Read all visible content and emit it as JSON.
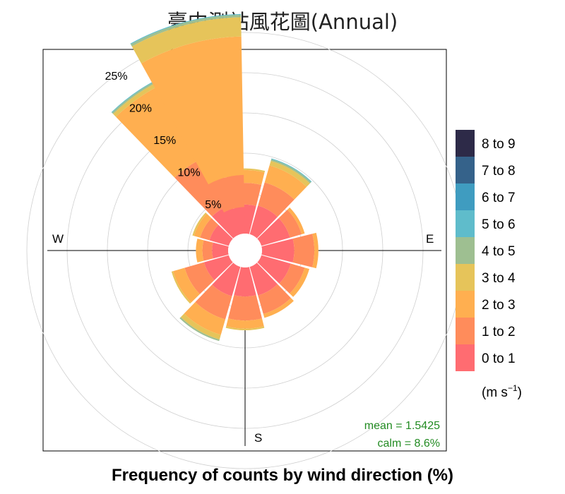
{
  "title": "臺中測站風花圖(Annual)",
  "caption": "Frequency of counts by wind direction (%)",
  "chart_data": {
    "type": "polar-stacked-bar",
    "title": "臺中測站風花圖(Annual)",
    "xlabel": "Frequency of counts by wind direction (%)",
    "radial_ticks": [
      "5%",
      "10%",
      "15%",
      "20%",
      "25%"
    ],
    "radial_tick_values": [
      5,
      10,
      15,
      20,
      25
    ],
    "compass_labels": [
      "W",
      "E",
      "S"
    ],
    "legend_title": "(m s",
    "legend_title_sup": "−1",
    "legend_title_close": ")",
    "mean_text": "mean = 1.5425",
    "calm_text": "calm = 8.6%",
    "mean_color": "#228b22",
    "legend": [
      {
        "label": "0 to 1",
        "color": "#ff6c71"
      },
      {
        "label": "1 to 2",
        "color": "#ff8c5b"
      },
      {
        "label": "2 to 3",
        "color": "#ffaf50"
      },
      {
        "label": "3 to 4",
        "color": "#e6c45a"
      },
      {
        "label": "4 to 5",
        "color": "#9ebf91"
      },
      {
        "label": "5 to 6",
        "color": "#5fbccb"
      },
      {
        "label": "6 to 7",
        "color": "#3f9cc0"
      },
      {
        "label": "7 to 8",
        "color": "#35628a"
      },
      {
        "label": "8 to 9",
        "color": "#2d2a48"
      }
    ],
    "directions": [
      {
        "angle": 0,
        "values": [
          3.6,
          2.7,
          1.6,
          0.2,
          0,
          0,
          0,
          0,
          0
        ]
      },
      {
        "angle": 30,
        "values": [
          3.7,
          3.0,
          2.2,
          0.6,
          0.2,
          0.1,
          0,
          0,
          0
        ]
      },
      {
        "angle": 60,
        "values": [
          3.7,
          1.5,
          0.4,
          0,
          0,
          0,
          0,
          0,
          0
        ]
      },
      {
        "angle": 90,
        "values": [
          4.0,
          2.5,
          0.5,
          0,
          0,
          0,
          0,
          0,
          0
        ]
      },
      {
        "angle": 120,
        "values": [
          3.8,
          1.8,
          0.6,
          0,
          0,
          0,
          0,
          0,
          0
        ]
      },
      {
        "angle": 150,
        "values": [
          3.7,
          2.4,
          0.5,
          0,
          0,
          0,
          0,
          0,
          0
        ]
      },
      {
        "angle": 180,
        "values": [
          3.6,
          3.0,
          1.0,
          0.2,
          0,
          0,
          0,
          0,
          0
        ]
      },
      {
        "angle": 210,
        "values": [
          3.8,
          3.0,
          2.0,
          0.6,
          0.2,
          0,
          0,
          0,
          0
        ]
      },
      {
        "angle": 240,
        "values": [
          3.2,
          2.5,
          1.5,
          0.2,
          0,
          0,
          0,
          0,
          0
        ]
      },
      {
        "angle": 270,
        "values": [
          2.0,
          1.2,
          0.8,
          0,
          0,
          0,
          0,
          0,
          0
        ]
      },
      {
        "angle": 300,
        "values": [
          2.5,
          1.2,
          0.8,
          0.2,
          0,
          0,
          0,
          0,
          0
        ]
      },
      {
        "angle": 330,
        "values": [
          3.8,
          6.7,
          10.5,
          0.5,
          0.2,
          0.1,
          0,
          0,
          0
        ]
      },
      {
        "angle": 345,
        "values": [
          3.3,
          4.0,
          17.2,
          2.4,
          0.3,
          0.1,
          0,
          0,
          0
        ]
      }
    ]
  }
}
